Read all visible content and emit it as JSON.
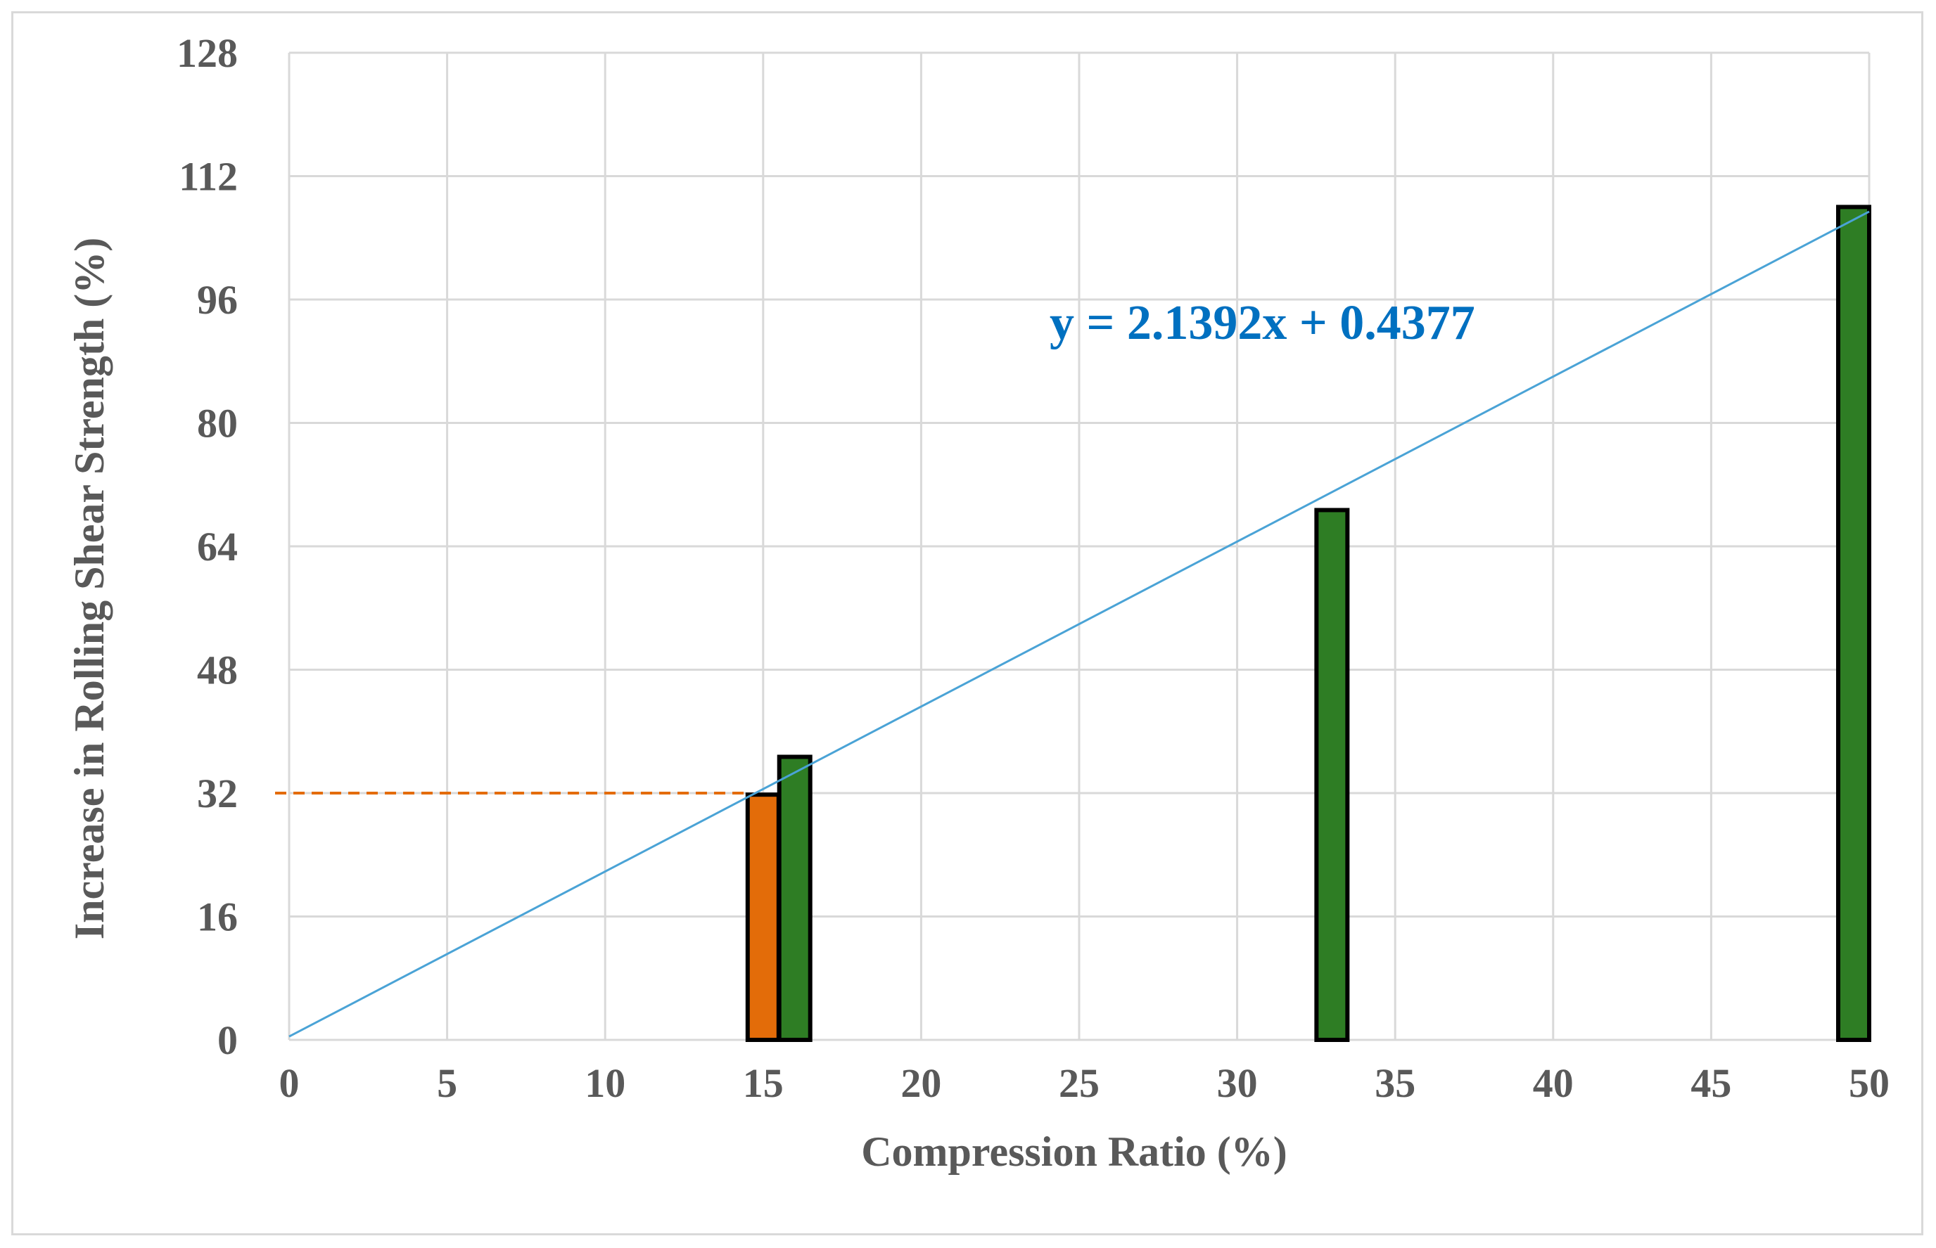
{
  "chart_data": {
    "type": "bar",
    "xlabel": "Compression Ratio (%)",
    "ylabel": "Increase in Rolling Shear Strength (%)",
    "xlim": [
      0,
      50
    ],
    "ylim": [
      0,
      128
    ],
    "x_ticks": [
      0,
      5,
      10,
      15,
      20,
      25,
      30,
      35,
      40,
      45,
      50
    ],
    "y_ticks": [
      0,
      16,
      32,
      48,
      64,
      80,
      96,
      112,
      128
    ],
    "grid": true,
    "series": [
      {
        "color": "#e36c09",
        "points": [
          {
            "x": 15,
            "y": 31.8
          }
        ]
      },
      {
        "color": "#2e7d24",
        "points": [
          {
            "x": 16,
            "y": 36.7
          },
          {
            "x": 33,
            "y": 68.7
          },
          {
            "x": 50,
            "y": 108
          }
        ]
      }
    ],
    "trendline": {
      "label": "y = 2.1392x + 0.4377",
      "slope": 2.1392,
      "intercept": 0.4377,
      "x_range": [
        0,
        50
      ],
      "color": "#4aa3d6"
    },
    "reference_line": {
      "y": 32,
      "x_range": [
        0,
        15
      ],
      "color": "#e36c09",
      "style": "dashed"
    }
  }
}
